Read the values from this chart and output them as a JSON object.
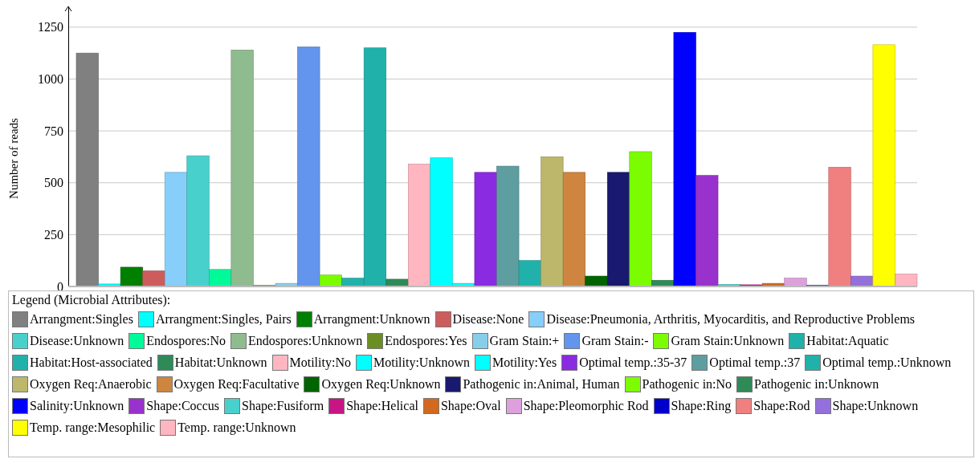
{
  "chart_data": {
    "type": "bar",
    "ylabel": "Number of reads",
    "legend_title": "Legend (Microbial Attributes):",
    "categories": [
      null
    ],
    "series": [
      {
        "name": "Arrangment:Singles",
        "color": "#808080",
        "values": [
          1125
        ]
      },
      {
        "name": "Arrangment:Singles, Pairs",
        "color": "#00ffff",
        "values": [
          12
        ]
      },
      {
        "name": "Arrangment:Unknown",
        "color": "#008000",
        "values": [
          93
        ]
      },
      {
        "name": "Disease:None",
        "color": "#cd5c5c",
        "values": [
          75
        ]
      },
      {
        "name": "Disease:Pneumonia, Arthritis, Myocarditis, and Reproductive Problems",
        "color": "#87cefa",
        "values": [
          550
        ]
      },
      {
        "name": "Disease:Unknown",
        "color": "#48d1cc",
        "values": [
          630
        ]
      },
      {
        "name": "Endospores:No",
        "color": "#00fa9a",
        "values": [
          82
        ]
      },
      {
        "name": "Endospores:Unknown",
        "color": "#8fbc8f",
        "values": [
          1140
        ]
      },
      {
        "name": "Endospores:Yes",
        "color": "#6b8e23",
        "values": [
          5
        ]
      },
      {
        "name": "Gram Stain:+",
        "color": "#87ceeb",
        "values": [
          15
        ]
      },
      {
        "name": "Gram Stain:-",
        "color": "#6495ed",
        "values": [
          1155
        ]
      },
      {
        "name": "Gram Stain:Unknown",
        "color": "#7cfc00",
        "values": [
          55
        ]
      },
      {
        "name": "Habitat:Aquatic",
        "color": "#20b2aa",
        "values": [
          40
        ]
      },
      {
        "name": "Habitat:Host-associated",
        "color": "#20b2aa",
        "values": [
          1150
        ]
      },
      {
        "name": "Habitat:Unknown",
        "color": "#2e8b57",
        "values": [
          35
        ]
      },
      {
        "name": "Motility:No",
        "color": "#ffb6c1",
        "values": [
          590
        ]
      },
      {
        "name": "Motility:Unknown",
        "color": "#00ffff",
        "values": [
          620
        ]
      },
      {
        "name": "Motility:Yes",
        "color": "#00ffff",
        "values": [
          15
        ]
      },
      {
        "name": "Optimal temp.:35-37",
        "color": "#8a2be2",
        "values": [
          550
        ]
      },
      {
        "name": "Optimal temp.:37",
        "color": "#5f9ea0",
        "values": [
          580
        ]
      },
      {
        "name": "Optimal temp.:Unknown",
        "color": "#20b2aa",
        "values": [
          125
        ]
      },
      {
        "name": "Oxygen Req:Anaerobic",
        "color": "#bdb76b",
        "values": [
          625
        ]
      },
      {
        "name": "Oxygen Req:Facultative",
        "color": "#cd853f",
        "values": [
          550
        ]
      },
      {
        "name": "Oxygen Req:Unknown",
        "color": "#006400",
        "values": [
          50
        ]
      },
      {
        "name": "Pathogenic in:Animal, Human",
        "color": "#191970",
        "values": [
          550
        ]
      },
      {
        "name": "Pathogenic in:No",
        "color": "#7cfc00",
        "values": [
          650
        ]
      },
      {
        "name": "Pathogenic in:Unknown",
        "color": "#2e8b57",
        "values": [
          30
        ]
      },
      {
        "name": "Salinity:Unknown",
        "color": "#0000ff",
        "values": [
          1225
        ]
      },
      {
        "name": "Shape:Coccus",
        "color": "#9932cc",
        "values": [
          535
        ]
      },
      {
        "name": "Shape:Fusiform",
        "color": "#48d1cc",
        "values": [
          10
        ]
      },
      {
        "name": "Shape:Helical",
        "color": "#c71585",
        "values": [
          8
        ]
      },
      {
        "name": "Shape:Oval",
        "color": "#d2691e",
        "values": [
          15
        ]
      },
      {
        "name": "Shape:Pleomorphic Rod",
        "color": "#dda0dd",
        "values": [
          40
        ]
      },
      {
        "name": "Shape:Ring",
        "color": "#0000cd",
        "values": [
          5
        ]
      },
      {
        "name": "Shape:Rod",
        "color": "#f08080",
        "values": [
          575
        ]
      },
      {
        "name": "Shape:Unknown",
        "color": "#9370db",
        "values": [
          50
        ]
      },
      {
        "name": "Temp. range:Mesophilic",
        "color": "#ffff00",
        "values": [
          1165
        ]
      },
      {
        "name": "Temp. range:Unknown",
        "color": "#ffb6c1",
        "values": [
          60
        ]
      }
    ],
    "ylim": [
      0,
      1350
    ],
    "yticks": [
      0,
      250,
      500,
      750,
      1000,
      1250
    ],
    "grid": "y",
    "legend": "bottom",
    "tick_labels": "y"
  }
}
